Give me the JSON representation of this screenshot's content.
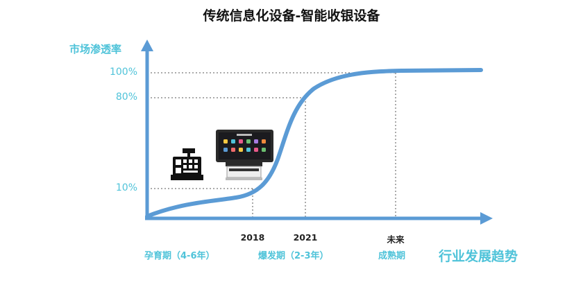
{
  "title": "传统信息化设备-智能收银设备",
  "y_axis": {
    "label": "市场渗透率",
    "ticks": [
      "100%",
      "80%",
      "10%"
    ]
  },
  "x_axis": {
    "label": "行业发展趋势",
    "years": [
      "2018",
      "2021",
      "未来"
    ]
  },
  "phases": [
    "孕育期（4-6年）",
    "爆发期（2-3年）",
    "成熟期"
  ],
  "illustrations": [
    "cash-register-icon",
    "smart-pos-terminal-icon"
  ],
  "colors": {
    "curve": "#5b9bd5",
    "axis": "#5b9bd5",
    "accent_text": "#4fc3d9",
    "guide": "#555555"
  }
}
